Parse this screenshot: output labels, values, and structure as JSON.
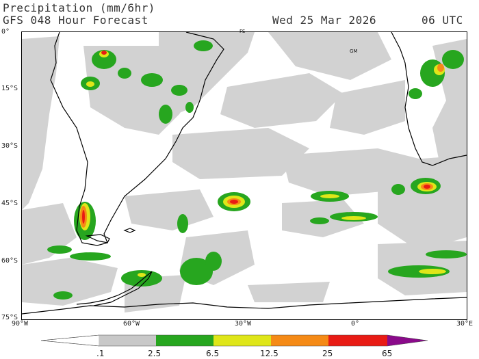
{
  "header": {
    "title": "Precipitation (mm/6hr)",
    "subtitle": "GFS 048 Hour Forecast",
    "valid_date": "Wed 25 Mar 2026",
    "valid_time": "06 UTC"
  },
  "axes": {
    "lat_labels": [
      "0°",
      "15°S",
      "30°S",
      "45°S",
      "60°S",
      "75°S"
    ],
    "lon_labels": [
      "90°W",
      "60°W",
      "30°W",
      "0°",
      "30°E"
    ]
  },
  "map_labels": {
    "station_fs": "FS",
    "station_gm": "GM"
  },
  "legend": {
    "labels": [
      ".1",
      "2.5",
      "6.5",
      "12.5",
      "25",
      "65"
    ],
    "colors": [
      "#ffffff",
      "#c8c8c8",
      "#27a61f",
      "#dfe619",
      "#f58a16",
      "#e81b14",
      "#8a0a8a"
    ]
  }
}
